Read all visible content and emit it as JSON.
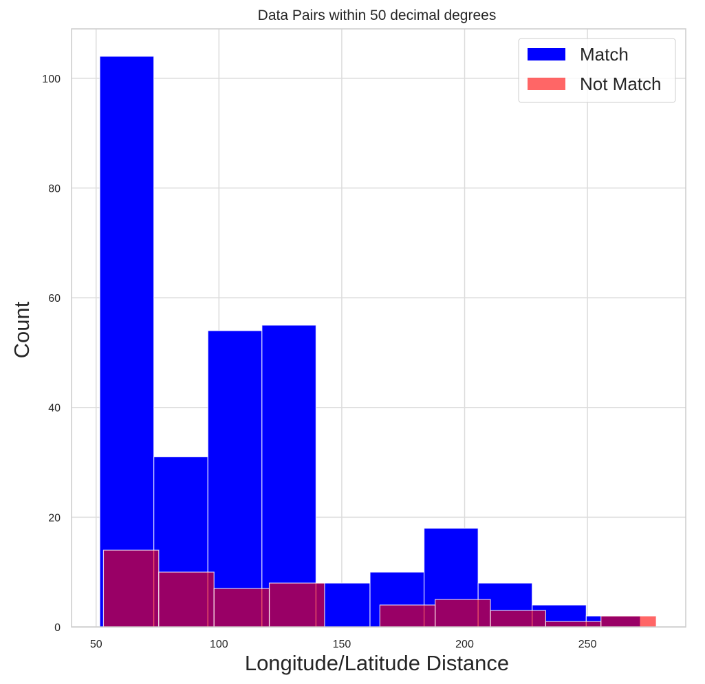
{
  "chart_data": {
    "type": "bar",
    "subtype": "histogram",
    "title": "Data Pairs within 50 decimal degrees",
    "xlabel": "Longitude/Latitude Distance",
    "ylabel": "Count",
    "xlim": [
      40,
      290
    ],
    "ylim": [
      0,
      109
    ],
    "xticks": [
      50,
      100,
      150,
      200,
      250
    ],
    "yticks": [
      0,
      20,
      40,
      60,
      80,
      100
    ],
    "grid": true,
    "legend_position": "top-right",
    "series": [
      {
        "name": "Match",
        "color": "#0000ff",
        "opacity": 1,
        "bins": [
          {
            "start": 51.5,
            "end": 73.5,
            "count": 104
          },
          {
            "start": 73.5,
            "end": 95.5,
            "count": 31
          },
          {
            "start": 95.5,
            "end": 117.5,
            "count": 54
          },
          {
            "start": 117.5,
            "end": 139.5,
            "count": 55
          },
          {
            "start": 139.5,
            "end": 161.5,
            "count": 8
          },
          {
            "start": 161.5,
            "end": 183.5,
            "count": 10
          },
          {
            "start": 183.5,
            "end": 205.5,
            "count": 18
          },
          {
            "start": 205.5,
            "end": 227.5,
            "count": 8
          },
          {
            "start": 227.5,
            "end": 249.5,
            "count": 4
          },
          {
            "start": 249.5,
            "end": 271.5,
            "count": 2
          }
        ]
      },
      {
        "name": "Not Match",
        "color": "#ff0000",
        "opacity": 0.6,
        "bins": [
          {
            "start": 53,
            "end": 75.5,
            "count": 14
          },
          {
            "start": 75.5,
            "end": 98,
            "count": 10
          },
          {
            "start": 98,
            "end": 120.5,
            "count": 7
          },
          {
            "start": 120.5,
            "end": 143,
            "count": 8
          },
          {
            "start": 143,
            "end": 165.5,
            "count": 0
          },
          {
            "start": 165.5,
            "end": 188,
            "count": 4
          },
          {
            "start": 188,
            "end": 210.5,
            "count": 5
          },
          {
            "start": 210.5,
            "end": 233,
            "count": 3
          },
          {
            "start": 233,
            "end": 255.5,
            "count": 1
          },
          {
            "start": 255.5,
            "end": 278,
            "count": 2
          }
        ]
      }
    ]
  }
}
